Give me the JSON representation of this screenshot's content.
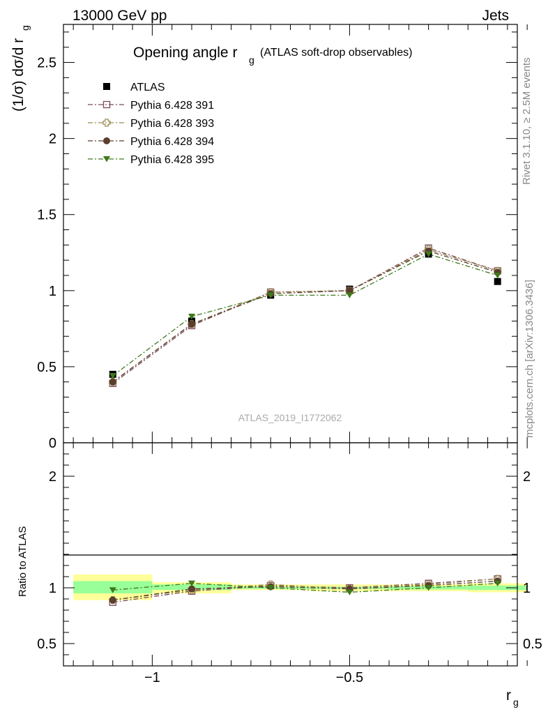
{
  "header": {
    "left": "13000 GeV pp",
    "right": "Jets"
  },
  "side": {
    "rivet": "Rivet 3.1.10, ≥ 2.5M events",
    "mcplots": "mcplots.cern.ch [arXiv:1306.3436]"
  },
  "chart_data": [
    {
      "type": "scatter",
      "title_main": "Opening angle r",
      "title_sub": "g",
      "title_extra": "(ATLAS soft-drop observables)",
      "ylabel_main": "(1/σ) dσ/d r",
      "ylabel_sub": "g",
      "watermark": "ATLAS_2019_I1772062",
      "ylim": [
        0,
        2.75
      ],
      "xlim": [
        -1.225,
        -0.075
      ],
      "yticks": [
        0.5,
        1,
        1.5,
        2,
        2.5
      ],
      "ytick_labels": [
        "0.5",
        "1",
        "1.5",
        "2",
        "2.5"
      ],
      "y_zero_label": "0",
      "x": [
        -1.1,
        -0.9,
        -0.7,
        -0.5,
        -0.3,
        -0.125
      ],
      "series": [
        {
          "name": "ATLAS",
          "color": "#000000",
          "marker": "square-filled",
          "line": "none",
          "values": [
            0.45,
            0.8,
            0.97,
            1.01,
            1.24,
            1.06
          ]
        },
        {
          "name": "Pythia 6.428 391",
          "color": "#7a4a5a",
          "marker": "square-open",
          "line": "dashdot",
          "values": [
            0.39,
            0.77,
            0.99,
            1.0,
            1.28,
            1.13
          ]
        },
        {
          "name": "Pythia 6.428 393",
          "color": "#9a8a50",
          "marker": "cross-open",
          "line": "dashdot",
          "values": [
            0.4,
            0.78,
            0.99,
            1.0,
            1.27,
            1.13
          ]
        },
        {
          "name": "Pythia 6.428 394",
          "color": "#5a3e2e",
          "marker": "circle-filled",
          "line": "dashdot",
          "values": [
            0.4,
            0.78,
            0.98,
            1.0,
            1.26,
            1.12
          ]
        },
        {
          "name": "Pythia 6.428 395",
          "color": "#3d7a1a",
          "marker": "triangle-down-filled",
          "line": "dashdot",
          "values": [
            0.44,
            0.83,
            0.97,
            0.97,
            1.24,
            1.1
          ]
        }
      ]
    },
    {
      "type": "scatter",
      "ylabel": "Ratio to ATLAS",
      "xlabel_main": "r",
      "xlabel_sub": "g",
      "ylim": [
        0.3,
        2.3
      ],
      "xlim": [
        -1.225,
        -0.075
      ],
      "yticks": [
        0.5,
        1,
        2
      ],
      "ytick_labels": [
        "0.5",
        "1",
        "2"
      ],
      "xticks": [
        -1,
        -0.5
      ],
      "xtick_labels": [
        "−1",
        "−0.5"
      ],
      "uncertainty_bands": {
        "bins": [
          [
            -1.2,
            -1.0
          ],
          [
            -1.0,
            -0.8
          ],
          [
            -0.8,
            -0.6
          ],
          [
            -0.6,
            -0.4
          ],
          [
            -0.4,
            -0.2
          ],
          [
            -0.2,
            -0.05
          ]
        ],
        "total": [
          [
            0.89,
            1.12
          ],
          [
            0.95,
            1.05
          ],
          [
            0.98,
            1.03
          ],
          [
            0.97,
            1.03
          ],
          [
            0.97,
            1.03
          ],
          [
            0.96,
            1.04
          ]
        ],
        "stat": [
          [
            0.95,
            1.06
          ],
          [
            0.98,
            1.03
          ],
          [
            0.99,
            1.01
          ],
          [
            0.99,
            1.01
          ],
          [
            0.985,
            1.015
          ],
          [
            0.98,
            1.02
          ]
        ],
        "total_color": "#ffff99",
        "stat_color": "#99ff99"
      },
      "x": [
        -1.1,
        -0.9,
        -0.7,
        -0.5,
        -0.3,
        -0.125
      ],
      "series": [
        {
          "name": "Pythia 6.428 391",
          "color": "#7a4a5a",
          "marker": "square-open",
          "line": "dashdot",
          "values": [
            0.87,
            0.97,
            1.02,
            1.0,
            1.04,
            1.08
          ]
        },
        {
          "name": "Pythia 6.428 393",
          "color": "#9a8a50",
          "marker": "cross-open",
          "line": "dashdot",
          "values": [
            0.89,
            0.98,
            1.03,
            0.99,
            1.03,
            1.08
          ]
        },
        {
          "name": "Pythia 6.428 394",
          "color": "#5a3e2e",
          "marker": "circle-filled",
          "line": "dashdot",
          "values": [
            0.89,
            0.99,
            1.01,
            0.99,
            1.02,
            1.06
          ]
        },
        {
          "name": "Pythia 6.428 395",
          "color": "#3d7a1a",
          "marker": "triangle-down-filled",
          "line": "dashdot",
          "values": [
            0.98,
            1.04,
            1.0,
            0.96,
            1.0,
            1.04
          ]
        }
      ]
    }
  ]
}
